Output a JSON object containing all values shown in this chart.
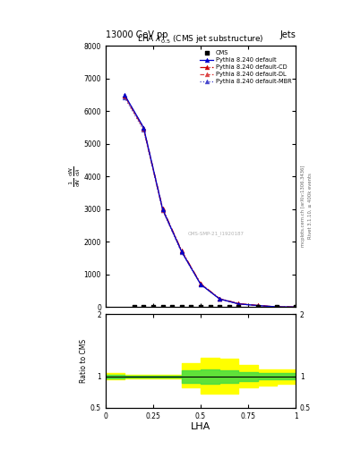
{
  "title": "13000 GeV pp",
  "title_right": "Jets",
  "plot_title": "LHA $\\lambda^{1}_{0.5}$ (CMS jet substructure)",
  "xlabel": "LHA",
  "ylabel_ratio": "Ratio to CMS",
  "watermark": "CMS-SMP-21_I1920187",
  "right_label": "mcplots.cern.ch [arXiv:1306.3436]",
  "right_label2": "Rivet 3.1.10, ≥ 400k events",
  "py_x": [
    0.1,
    0.2,
    0.3,
    0.4,
    0.5,
    0.6,
    0.7,
    0.8,
    0.9,
    1.0
  ],
  "py_default_y": [
    6500,
    5500,
    3000,
    1700,
    700,
    250,
    100,
    50,
    10,
    5
  ],
  "py_cd_y": [
    6480,
    5480,
    3020,
    1730,
    720,
    260,
    110,
    52,
    11,
    5
  ],
  "py_dl_y": [
    6460,
    5460,
    2980,
    1710,
    710,
    255,
    105,
    51,
    11,
    5
  ],
  "py_mbr_y": [
    6420,
    5420,
    2960,
    1680,
    700,
    250,
    100,
    49,
    10,
    4
  ],
  "cms_x": [
    0.15,
    0.2,
    0.25,
    0.3,
    0.35,
    0.4,
    0.45,
    0.5,
    0.55,
    0.6,
    0.65,
    0.7,
    0.8,
    0.9,
    1.0
  ],
  "ylim_main": [
    0,
    8000
  ],
  "yticks_main": [
    0,
    1000,
    2000,
    3000,
    4000,
    5000,
    6000,
    7000,
    8000
  ],
  "xlim": [
    0,
    1
  ],
  "ratio_ylim": [
    0.5,
    2.0
  ],
  "color_default": "#0000cc",
  "color_cd": "#cc0000",
  "color_dl": "#dd4444",
  "color_mbr": "#4444cc",
  "band_x": [
    0.0,
    0.1,
    0.2,
    0.3,
    0.4,
    0.5,
    0.6,
    0.7,
    0.8,
    0.9,
    1.0
  ],
  "yband_lo": [
    0.95,
    0.97,
    0.97,
    0.97,
    0.82,
    0.72,
    0.73,
    0.82,
    0.85,
    0.88,
    0.88
  ],
  "yband_hi": [
    1.05,
    1.03,
    1.03,
    1.03,
    1.22,
    1.3,
    1.28,
    1.18,
    1.12,
    1.12,
    1.12
  ],
  "gband_lo": [
    0.97,
    0.98,
    0.98,
    0.98,
    0.9,
    0.88,
    0.9,
    0.93,
    0.95,
    0.95,
    0.95
  ],
  "gband_hi": [
    1.03,
    1.02,
    1.02,
    1.02,
    1.1,
    1.12,
    1.1,
    1.07,
    1.05,
    1.05,
    1.05
  ]
}
